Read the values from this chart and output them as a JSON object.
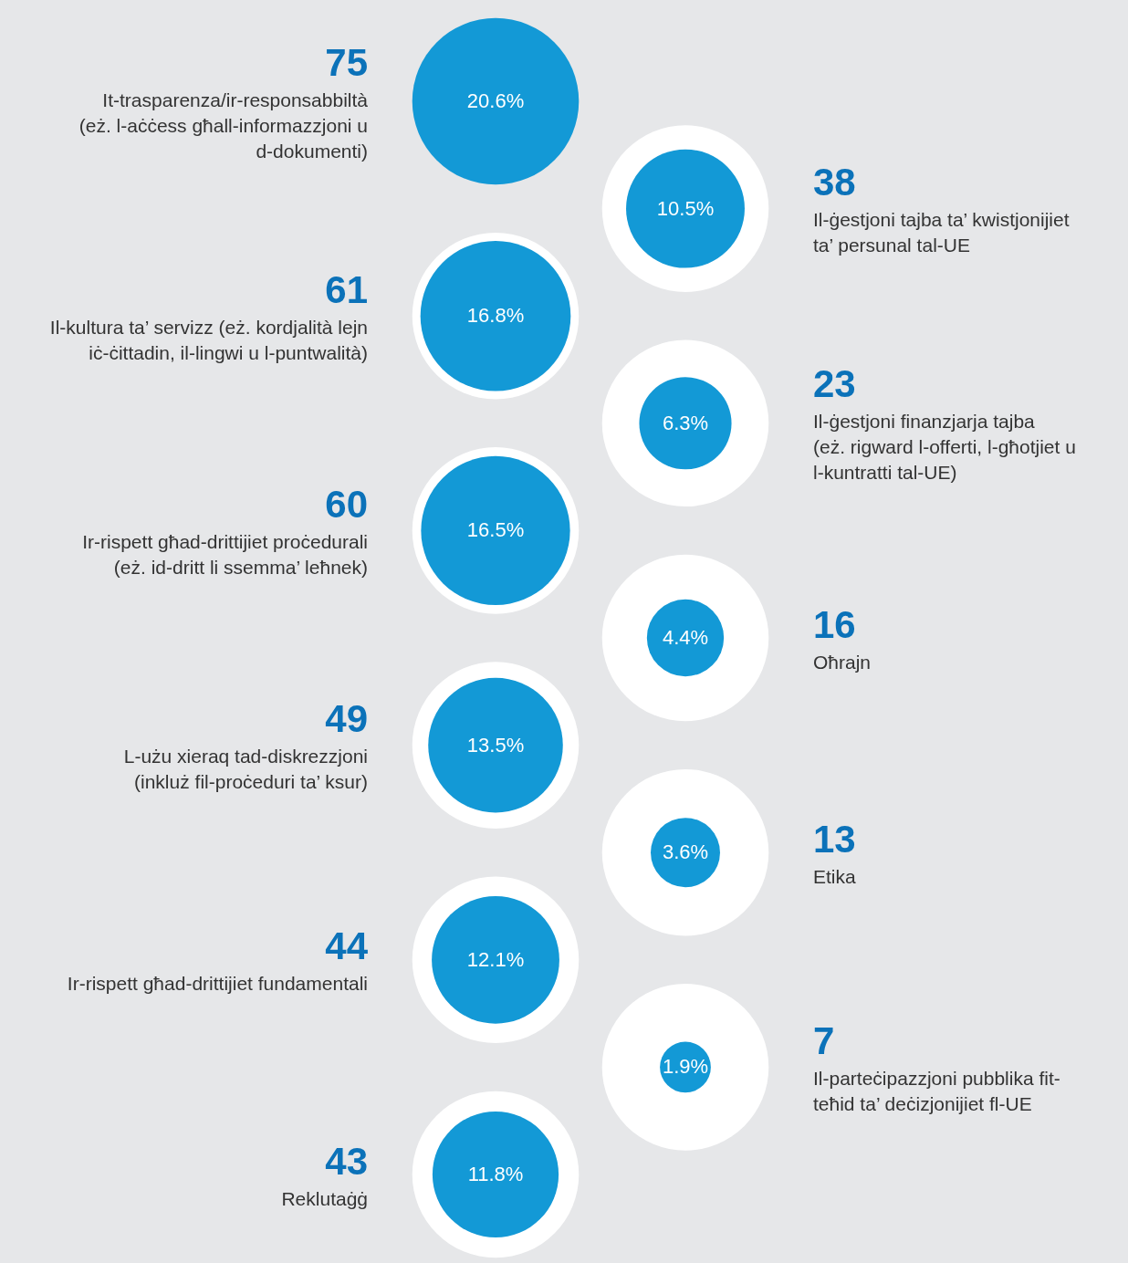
{
  "chart_data": {
    "type": "other",
    "categories": [
      "It-trasparenza/ir-responsabbiltà\n(eż. l-aċċess għall-informazzjoni u\nd-dokumenti)",
      "Il-ġestjoni tajba ta’ kwistjonijiet\nta’ persunal tal-UE",
      "Il-kultura ta’ servizz (eż. kordjalità lejn\niċ-ċittadin, il-lingwi u l-puntwalità)",
      "Il-ġestjoni finanzjarja tajba\n(eż. rigward l-offerti, l-għotjiet u\nl-kuntratti tal-UE)",
      "Ir-rispett għad-drittijiet proċedurali\n(eż. id-dritt li ssemma’ leħnek)",
      "Oħrajn",
      "L-użu xieraq tad-diskrezzjoni\n(inkluż fil-proċeduri ta’ ksur)",
      "Etika",
      "Ir-rispett għad-drittijiet fundamentali",
      "Il-parteċipazzjoni pubblika fit-\nteħid ta’ deċizjonijiet fl-UE",
      "Reklutaġġ"
    ],
    "series": [
      {
        "color": "#0b72b9",
        "values": [
          75,
          38,
          61,
          23,
          60,
          16,
          49,
          13,
          44,
          7,
          43
        ]
      },
      {
        "color": "#1399d6",
        "values": [
          20.6,
          10.5,
          16.8,
          6.3,
          16.5,
          4.4,
          13.5,
          3.6,
          12.1,
          1.9,
          11.8
        ],
        "value_labels": [
          "20.6%",
          "10.5%",
          "16.8%",
          "6.3%",
          "16.5%",
          "4.4%",
          "13.5%",
          "3.6%",
          "12.1%",
          "1.9%",
          "11.8%"
        ]
      }
    ],
    "data_labels": true
  }
}
